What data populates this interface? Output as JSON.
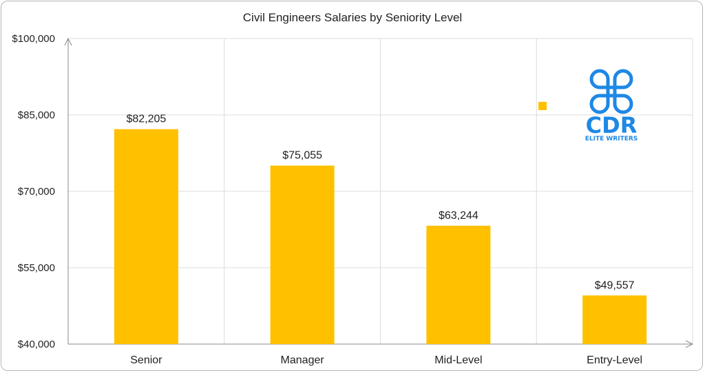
{
  "chart_data": {
    "type": "bar",
    "title": "Civil Engineers Salaries by Seniority Level",
    "xlabel": "",
    "ylabel": "",
    "categories": [
      "Senior",
      "Manager",
      "Mid-Level",
      "Entry-Level"
    ],
    "values": [
      82205,
      75055,
      63244,
      49557
    ],
    "value_labels": [
      "$82,205",
      "$75,055",
      "$63,244",
      "$49,557"
    ],
    "ylim": [
      40000,
      100000
    ],
    "yticks": [
      40000,
      55000,
      70000,
      85000,
      100000
    ],
    "ytick_labels": [
      "$40,000",
      "$55,000",
      "$70,000",
      "$85,000",
      "$100,000"
    ],
    "grid": true,
    "legend": "none",
    "bar_color": "#FFC000"
  },
  "logo": {
    "name": "cdr-elite-writers-logo",
    "text": "CDR",
    "subtext": "ELITE WRITERS",
    "color": "#1E88E5"
  }
}
